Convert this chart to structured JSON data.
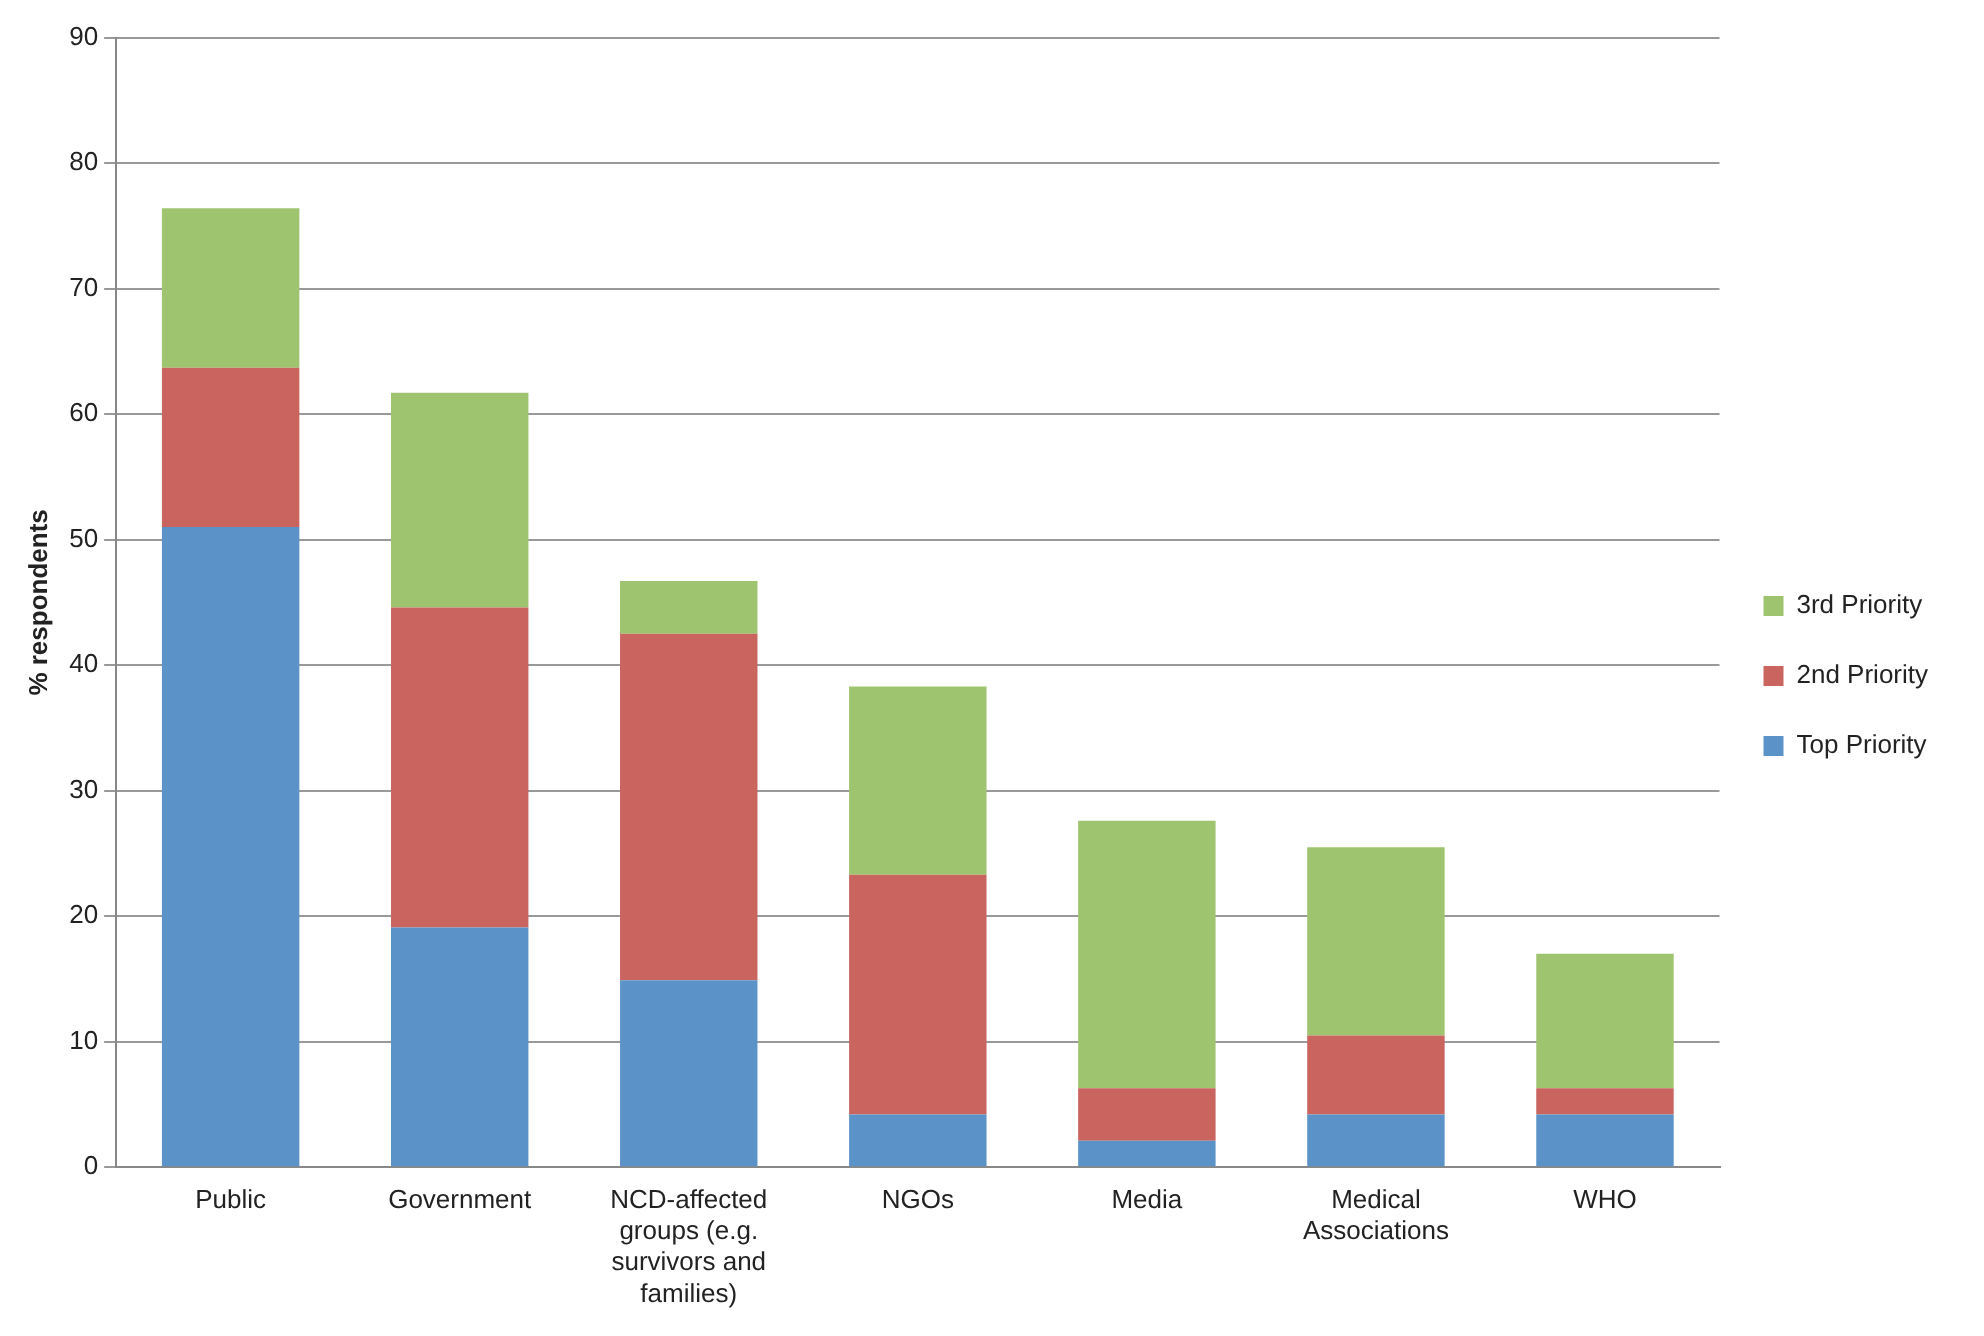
{
  "chart_data": {
    "type": "bar",
    "stacked": true,
    "ylabel": "% respondents",
    "categories": [
      "Public",
      "Government",
      "NCD-affected groups (e.g. survivors and families)",
      "NGOs",
      "Media",
      "Medical Associations",
      "WHO"
    ],
    "series": [
      {
        "name": "Top Priority",
        "color": "#5b93c8",
        "values": [
          51,
          19.1,
          14.9,
          4.2,
          2.1,
          4.2,
          4.2
        ]
      },
      {
        "name": "2nd Priority",
        "color": "#c9645f",
        "values": [
          12.7,
          25.5,
          27.6,
          19.1,
          4.2,
          6.3,
          2.1
        ]
      },
      {
        "name": "3rd Priority",
        "color": "#9fc46f",
        "values": [
          12.7,
          17.1,
          4.2,
          15,
          21.3,
          15,
          10.7
        ]
      }
    ],
    "ylim": [
      0,
      90
    ],
    "yticks": [
      0,
      10,
      20,
      30,
      40,
      50,
      60,
      70,
      80,
      90
    ],
    "grid": "y",
    "legend": "right"
  }
}
